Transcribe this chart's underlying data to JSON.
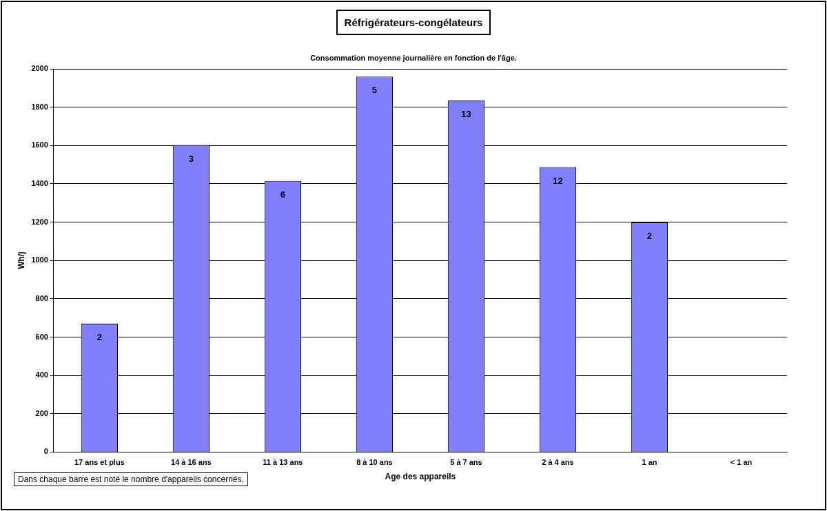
{
  "chart_data": {
    "type": "bar",
    "title": "Réfrigérateurs-congélateurs",
    "subtitle": "Consommation moyenne journalière en fonction de l'âge.",
    "xlabel": "Age des appareils",
    "ylabel": "Wh/j",
    "categories": [
      "17 ans et plus",
      "14 à 16 ans",
      "11 à 13 ans",
      "8 à 10 ans",
      "5 à 7 ans",
      "2 à 4 ans",
      "1 an",
      "< 1 an"
    ],
    "values": [
      670,
      1603,
      1415,
      1960,
      1835,
      1488,
      1198,
      null
    ],
    "color": "#8080ff",
    "ylim": [
      0,
      2000
    ],
    "yticks": [
      0,
      200,
      400,
      600,
      800,
      1000,
      1200,
      1400,
      1600,
      1800,
      2000
    ],
    "grid": "y",
    "legend": false,
    "annotations": [
      "Dans chaque barre est noté le nombre d'appareils concernés.",
      {
        "text": "2",
        "x": "17 ans et plus",
        "y": 670
      },
      {
        "text": "3",
        "x": "14 à 16 ans",
        "y": 1603
      },
      {
        "text": "6",
        "x": "11 à 13 ans",
        "y": 1415
      },
      {
        "text": "5",
        "x": "8 à 10 ans",
        "y": 1960
      },
      {
        "text": "13",
        "x": "5 à 7 ans",
        "y": 1835
      },
      {
        "text": "12",
        "x": "2 à 4 ans",
        "y": 1488
      },
      {
        "text": "2",
        "x": "1 an",
        "y": 1198
      }
    ]
  }
}
